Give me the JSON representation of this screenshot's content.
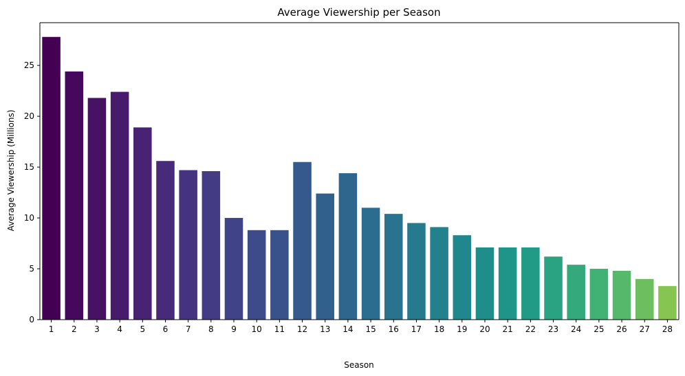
{
  "chart_data": {
    "type": "bar",
    "title": "Average Viewership per Season",
    "xlabel": "Season",
    "ylabel": "Average Viewership (Millions)",
    "categories": [
      "1",
      "2",
      "3",
      "4",
      "5",
      "6",
      "7",
      "8",
      "9",
      "10",
      "11",
      "12",
      "13",
      "14",
      "15",
      "16",
      "17",
      "18",
      "19",
      "20",
      "21",
      "22",
      "23",
      "24",
      "25",
      "26",
      "27",
      "28"
    ],
    "values": [
      27.8,
      24.4,
      21.8,
      22.4,
      18.9,
      15.6,
      14.7,
      14.6,
      10.0,
      8.8,
      8.8,
      15.5,
      12.4,
      14.4,
      11.0,
      10.4,
      9.5,
      9.1,
      8.3,
      7.1,
      7.1,
      7.1,
      6.2,
      5.4,
      5.0,
      4.8,
      4.0,
      3.3
    ],
    "ylim": [
      0,
      29.2
    ],
    "yticks": [
      0,
      5,
      10,
      15,
      20,
      25
    ],
    "ytick_labels": [
      "0",
      "5",
      "10",
      "15",
      "20",
      "25"
    ],
    "grid": false,
    "palette": "viridis",
    "colors": [
      "#440154",
      "#46085c",
      "#471164",
      "#481a6c",
      "#482273",
      "#472b7a",
      "#46337f",
      "#433b84",
      "#404388",
      "#3d4b8a",
      "#39528b",
      "#35598c",
      "#32608d",
      "#2e668e",
      "#2b6d8e",
      "#29738e",
      "#267a8e",
      "#23818d",
      "#20878d",
      "#1f8e8b",
      "#1f9489",
      "#229b86",
      "#29a382",
      "#34aa7c",
      "#42b174",
      "#55b86a",
      "#6cbe5e",
      "#86c54f"
    ]
  }
}
